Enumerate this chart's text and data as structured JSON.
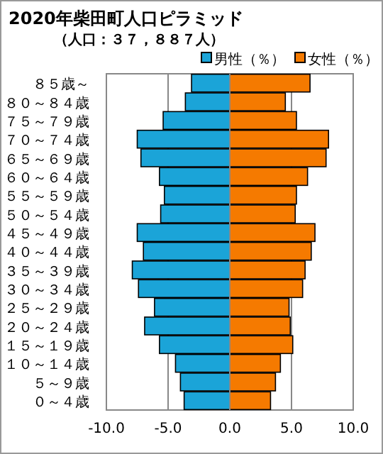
{
  "chart_data": {
    "type": "bar",
    "orientation": "horizontal",
    "stacked": true,
    "title": "2020年柴田町人口ピラミッド",
    "subtitle": "（人口：３７，８８７人）",
    "categories": [
      "８５歳～",
      "８０～８４歳",
      "７５～７９歳",
      "７０～７４歳",
      "６５～６９歳",
      "６０～６４歳",
      "５５～５９歳",
      "５０～５４歳",
      "４５～４９歳",
      "４０～４４歳",
      "３５～３９歳",
      "３０～３４歳",
      "２５～２９歳",
      "２０～２４歳",
      "１５～１９歳",
      "１０～１４歳",
      "５～９歳",
      "０～４歳"
    ],
    "series": [
      {
        "name": "男性（％）",
        "color": "#1ba4d8",
        "values": [
          -3.1,
          -3.6,
          -5.4,
          -7.5,
          -7.2,
          -5.7,
          -5.3,
          -5.6,
          -7.5,
          -7.0,
          -7.9,
          -7.4,
          -6.1,
          -6.9,
          -5.7,
          -4.4,
          -4.0,
          -3.7
        ]
      },
      {
        "name": "女性（％）",
        "color": "#f57a00",
        "values": [
          6.5,
          4.5,
          5.4,
          8.0,
          7.8,
          6.3,
          5.4,
          5.3,
          6.9,
          6.6,
          6.1,
          5.9,
          4.8,
          4.9,
          5.1,
          4.1,
          3.7,
          3.3
        ]
      }
    ],
    "xlim": [
      -10,
      10
    ],
    "xticks": [
      {
        "value": -10,
        "label": "-10.0"
      },
      {
        "value": -5,
        "label": "-5.0"
      },
      {
        "value": 0,
        "label": "0.0"
      },
      {
        "value": 5,
        "label": "5.0"
      },
      {
        "value": 10,
        "label": "10.0"
      }
    ],
    "grid": "x",
    "legend": "top right"
  }
}
